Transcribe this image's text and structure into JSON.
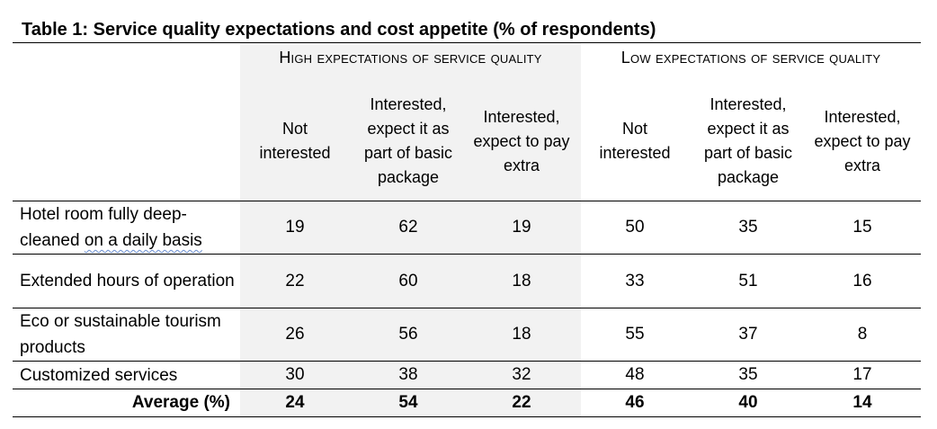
{
  "table": {
    "title": "Table 1: Service quality expectations and cost appetite (% of respondents)",
    "groups": [
      {
        "label": "High expectations of service quality"
      },
      {
        "label": "Low expectations of service quality"
      }
    ],
    "columns": [
      "Not interested",
      "Interested, expect it as part of basic package",
      "Interested, expect to pay extra",
      "Not interested",
      "Interested, expect it as part of basic package",
      "Interested, expect to pay extra"
    ],
    "rows": [
      {
        "label_pre": "Hotel room fully deep-cleaned ",
        "label_marked": "on a daily basis",
        "values": [
          "19",
          "62",
          "19",
          "50",
          "35",
          "15"
        ]
      },
      {
        "label": "Extended hours of operation",
        "values": [
          "22",
          "60",
          "18",
          "33",
          "51",
          "16"
        ]
      },
      {
        "label": "Eco or sustainable tourism products",
        "values": [
          "26",
          "56",
          "18",
          "55",
          "37",
          "8"
        ]
      },
      {
        "label": "Customized services",
        "values": [
          "30",
          "38",
          "32",
          "48",
          "35",
          "17"
        ]
      }
    ],
    "average": {
      "label": "Average (%)",
      "values": [
        "24",
        "54",
        "22",
        "46",
        "40",
        "14"
      ]
    }
  }
}
